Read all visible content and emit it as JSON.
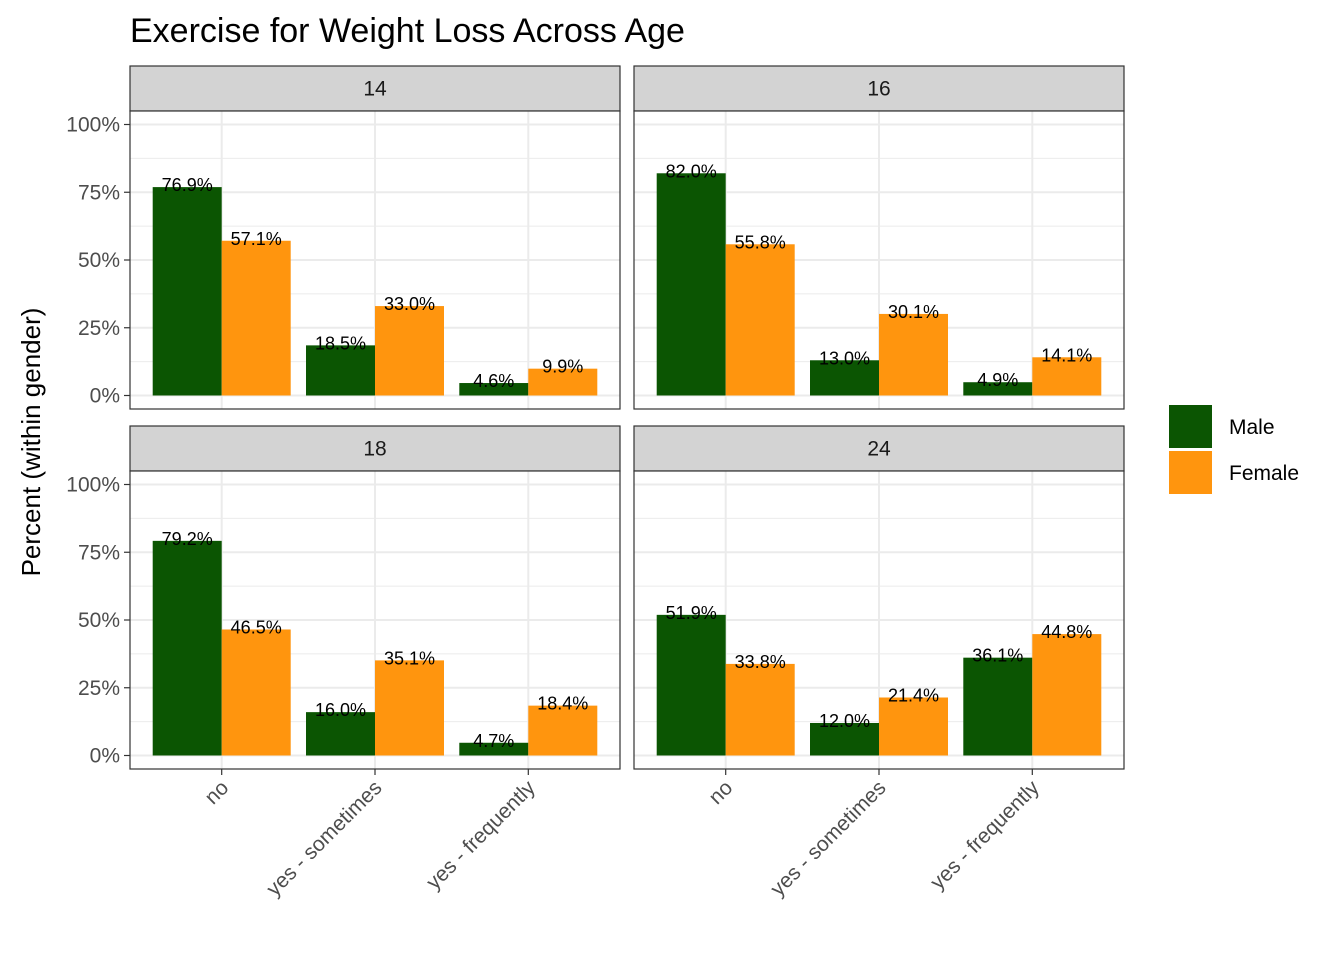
{
  "chart_data": {
    "type": "bar",
    "title": "Exercise for Weight Loss Across Age",
    "xlabel": "",
    "ylabel": "Percent (within gender)",
    "ylim": [
      0,
      100
    ],
    "y_ticks": [
      "0%",
      "25%",
      "50%",
      "75%",
      "100%"
    ],
    "categories": [
      "no",
      "yes - sometimes",
      "yes - frequently"
    ],
    "grid": true,
    "legend_position": "right",
    "series_meta": [
      {
        "name": "Male",
        "color": "#0b5502"
      },
      {
        "name": "Female",
        "color": "#ff950e"
      }
    ],
    "facets": [
      {
        "label": "14",
        "series": [
          {
            "name": "Male",
            "values": [
              76.9,
              18.5,
              4.6
            ],
            "labels": [
              "76.9%",
              "18.5%",
              "4.6%"
            ]
          },
          {
            "name": "Female",
            "values": [
              57.1,
              33.0,
              9.9
            ],
            "labels": [
              "57.1%",
              "33.0%",
              "9.9%"
            ]
          }
        ]
      },
      {
        "label": "16",
        "series": [
          {
            "name": "Male",
            "values": [
              82.0,
              13.0,
              4.9
            ],
            "labels": [
              "82.0%",
              "13.0%",
              "4.9%"
            ]
          },
          {
            "name": "Female",
            "values": [
              55.8,
              30.1,
              14.1
            ],
            "labels": [
              "55.8%",
              "30.1%",
              "14.1%"
            ]
          }
        ]
      },
      {
        "label": "18",
        "series": [
          {
            "name": "Male",
            "values": [
              79.2,
              16.0,
              4.7
            ],
            "labels": [
              "79.2%",
              "16.0%",
              "4.7%"
            ]
          },
          {
            "name": "Female",
            "values": [
              46.5,
              35.1,
              18.4
            ],
            "labels": [
              "46.5%",
              "35.1%",
              "18.4%"
            ]
          }
        ]
      },
      {
        "label": "24",
        "series": [
          {
            "name": "Male",
            "values": [
              51.9,
              12.0,
              36.1
            ],
            "labels": [
              "51.9%",
              "12.0%",
              "36.1%"
            ]
          },
          {
            "name": "Female",
            "values": [
              33.8,
              21.4,
              44.8
            ],
            "labels": [
              "33.8%",
              "21.4%",
              "44.8%"
            ]
          }
        ]
      }
    ]
  },
  "colors": {
    "strip_fill": "#d3d3d3",
    "grid": "#ebebeb",
    "panel_border": "#333333"
  }
}
